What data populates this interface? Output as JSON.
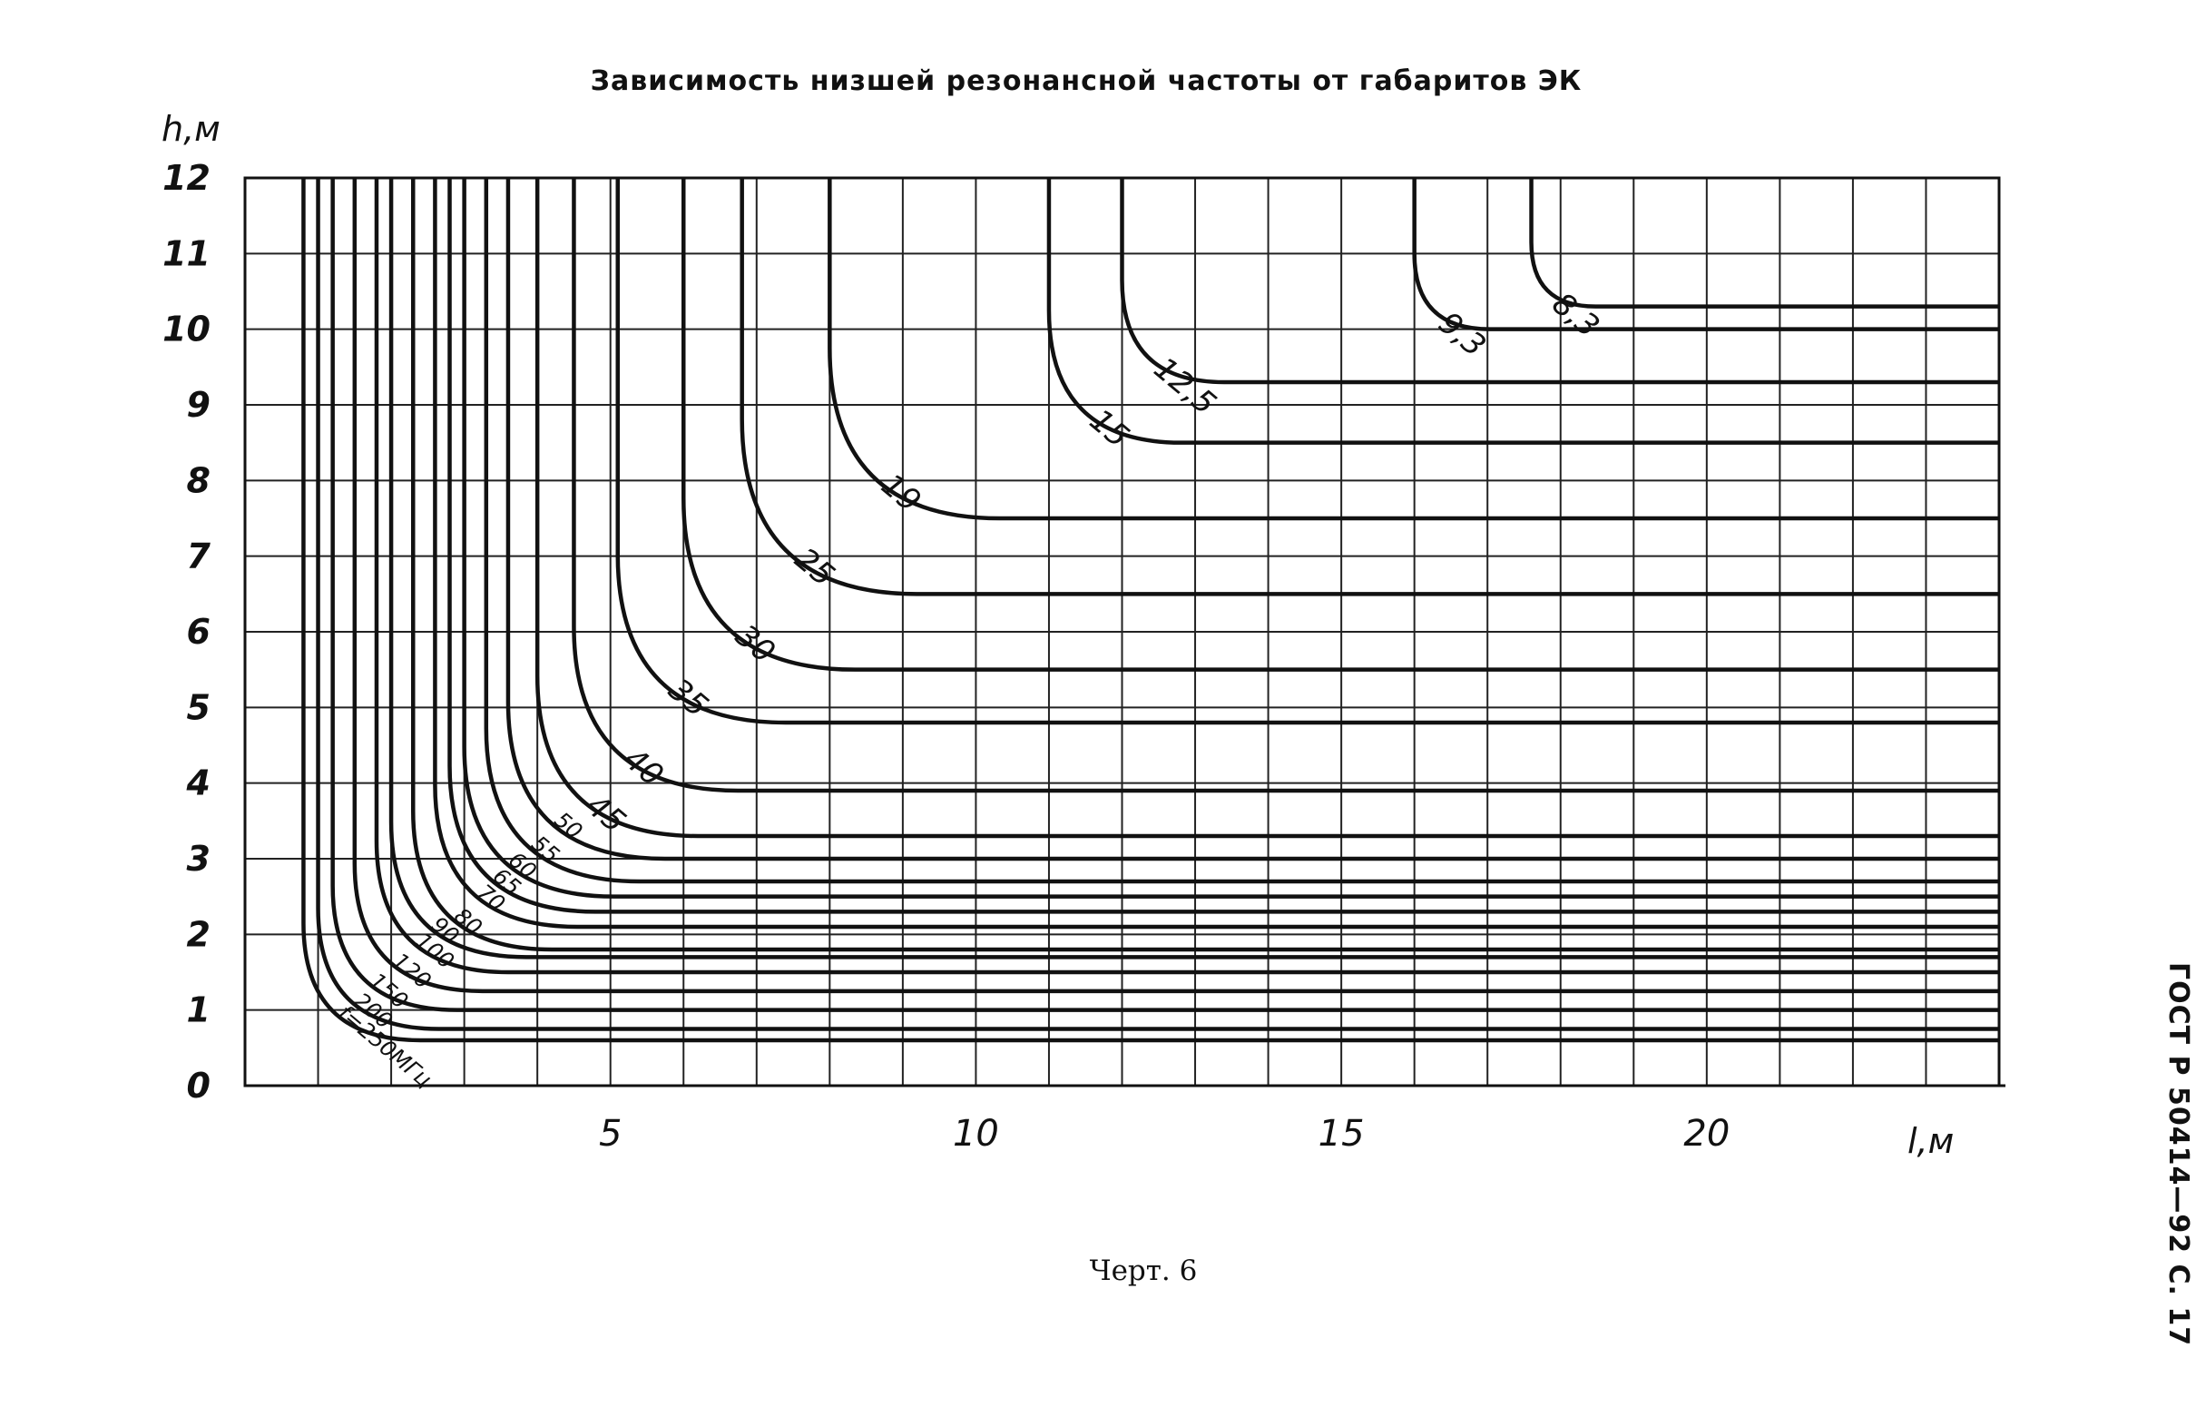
{
  "header": {
    "title": "Зависимость низшей резонансной частоты от габаритов ЭК"
  },
  "footer": {
    "caption": "Черт. 6",
    "side_label": "ГОСТ Р 50414—92 С. 17"
  },
  "chart_data": {
    "type": "line",
    "title": "Зависимость низшей резонансной частоты от габаритов ЭК",
    "xlabel": "l,м",
    "ylabel": "h,м",
    "xlim": [
      0,
      24
    ],
    "ylim": [
      0,
      12
    ],
    "x_ticks": [
      "5",
      "10",
      "15",
      "20"
    ],
    "y_ticks": [
      "0",
      "1",
      "2",
      "3",
      "4",
      "5",
      "6",
      "7",
      "8",
      "9",
      "10",
      "11",
      "12"
    ],
    "grid": true,
    "units": "МГц",
    "series": [
      {
        "name": "f=250МГц",
        "label": "f=250МГц",
        "l_min": 0.8,
        "h_min": 0.6
      },
      {
        "name": "200",
        "label": "200",
        "l_min": 1.0,
        "h_min": 0.75
      },
      {
        "name": "150",
        "label": "150",
        "l_min": 1.2,
        "h_min": 1.0
      },
      {
        "name": "120",
        "label": "120",
        "l_min": 1.5,
        "h_min": 1.25
      },
      {
        "name": "100",
        "label": "100",
        "l_min": 1.8,
        "h_min": 1.5
      },
      {
        "name": "90",
        "label": "90",
        "l_min": 2.0,
        "h_min": 1.7
      },
      {
        "name": "80",
        "label": "80",
        "l_min": 2.3,
        "h_min": 1.8
      },
      {
        "name": "70",
        "label": "70",
        "l_min": 2.6,
        "h_min": 2.1
      },
      {
        "name": "65",
        "label": "65",
        "l_min": 2.8,
        "h_min": 2.3
      },
      {
        "name": "60",
        "label": "60",
        "l_min": 3.0,
        "h_min": 2.5
      },
      {
        "name": "55",
        "label": "55",
        "l_min": 3.3,
        "h_min": 2.7
      },
      {
        "name": "50",
        "label": "50",
        "l_min": 3.6,
        "h_min": 3.0
      },
      {
        "name": "45",
        "label": "45",
        "l_min": 4.0,
        "h_min": 3.3
      },
      {
        "name": "40",
        "label": "40",
        "l_min": 4.5,
        "h_min": 3.9
      },
      {
        "name": "35",
        "label": "35",
        "l_min": 5.1,
        "h_min": 4.8
      },
      {
        "name": "30",
        "label": "30",
        "l_min": 6.0,
        "h_min": 5.5
      },
      {
        "name": "25",
        "label": "25",
        "l_min": 6.8,
        "h_min": 6.5
      },
      {
        "name": "19",
        "label": "19",
        "l_min": 8.0,
        "h_min": 7.5
      },
      {
        "name": "15",
        "label": "15",
        "l_min": 11.0,
        "h_min": 8.5
      },
      {
        "name": "12,5",
        "label": "12,5",
        "l_min": 12.0,
        "h_min": 9.3
      },
      {
        "name": "9,3",
        "label": "9,3",
        "l_min": 16.0,
        "h_min": 10.0
      },
      {
        "name": "8,3",
        "label": "8,3",
        "l_min": 17.6,
        "h_min": 10.3
      }
    ]
  }
}
